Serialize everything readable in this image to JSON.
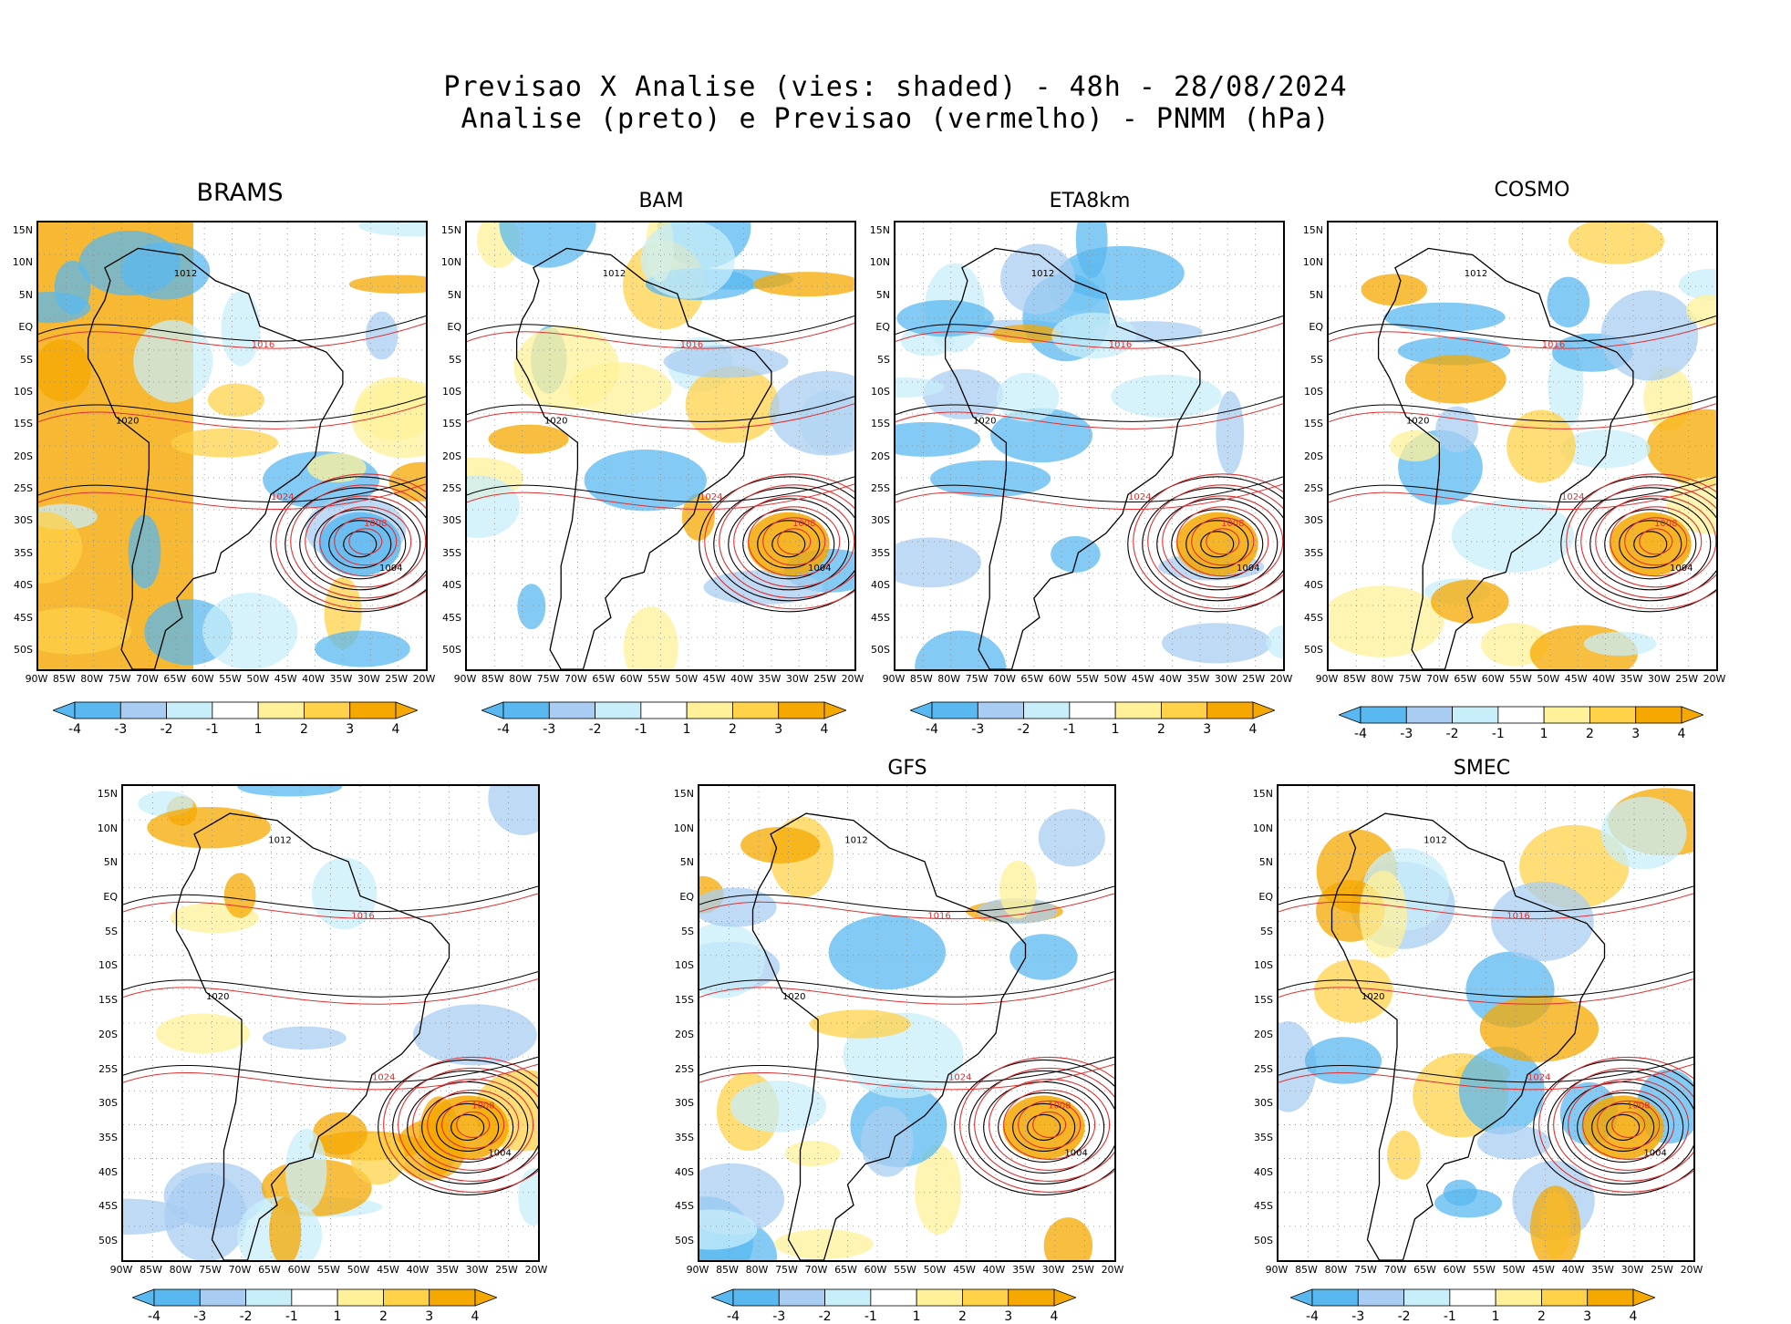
{
  "title": {
    "line1": "Previsao X Analise (vies: shaded) - 48h - 28/08/2024",
    "line2": "Analise (preto) e Previsao (vermelho) - PNMM (hPa)"
  },
  "colors": {
    "neg4": "#5ab8f0",
    "neg3": "#a9cdf2",
    "neg2": "#c8eefa",
    "neg1": "#ffffff",
    "pos1": "#ffffff",
    "pos2": "#fff19a",
    "pos3": "#ffd24a",
    "pos4": "#f5a800",
    "analysis_contour": "#000000",
    "forecast_contour": "#e03030"
  },
  "colorbar": {
    "labels": [
      "-4",
      "-3",
      "-2",
      "-1",
      "1",
      "2",
      "3",
      "4"
    ]
  },
  "axes": {
    "lat_labels": [
      "15N",
      "10N",
      "5N",
      "EQ",
      "5S",
      "10S",
      "15S",
      "20S",
      "25S",
      "30S",
      "35S",
      "40S",
      "45S",
      "50S"
    ],
    "lon_labels": [
      "90W",
      "85W",
      "80W",
      "75W",
      "70W",
      "65W",
      "60W",
      "55W",
      "50W",
      "45W",
      "40W",
      "35W",
      "30W",
      "25W",
      "20W"
    ]
  },
  "panels": [
    {
      "title": "BRAMS",
      "contour_labels": [
        "1012",
        "1016",
        "1020",
        "1024",
        "1004",
        "1008"
      ]
    },
    {
      "title": "BAM",
      "contour_labels": [
        "1012",
        "1016",
        "1020",
        "1024",
        "1004",
        "1008"
      ]
    },
    {
      "title": "ETA8km",
      "contour_labels": [
        "1012",
        "1016",
        "1020",
        "1024",
        "1004",
        "1008"
      ]
    },
    {
      "title": "COSMO",
      "contour_labels": [
        "1012",
        "1016",
        "1020",
        "1024",
        "1004",
        "1008"
      ]
    },
    {
      "title": "",
      "contour_labels": [
        "1012",
        "1016",
        "1020",
        "1024",
        "1004",
        "1008"
      ]
    },
    {
      "title": "GFS",
      "contour_labels": [
        "1012",
        "1016",
        "1020",
        "1024",
        "1004",
        "1008"
      ]
    },
    {
      "title": "SMEC",
      "contour_labels": [
        "1012",
        "1016",
        "1020",
        "1024",
        "1004",
        "1008"
      ]
    }
  ]
}
